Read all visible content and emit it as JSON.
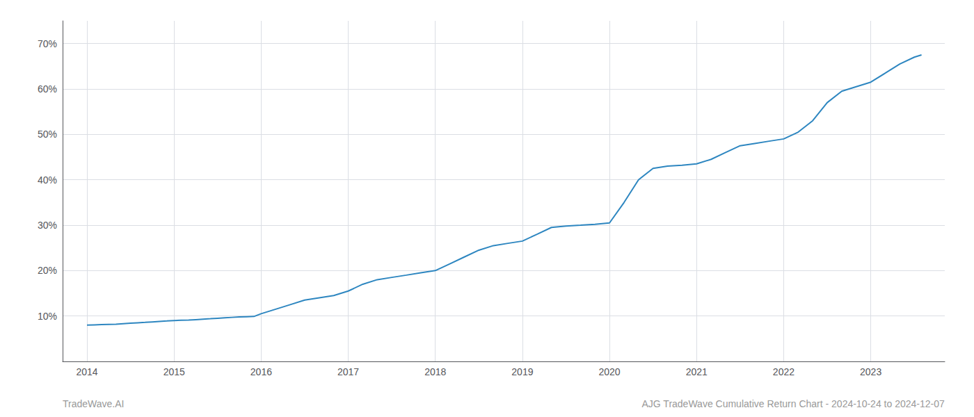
{
  "chart_data": {
    "type": "line",
    "x": [
      2014.0,
      2014.083,
      2014.167,
      2014.25,
      2014.333,
      2014.417,
      2014.5,
      2014.583,
      2014.667,
      2014.75,
      2014.833,
      2014.917,
      2015.0,
      2015.083,
      2015.167,
      2015.25,
      2015.333,
      2015.417,
      2015.5,
      2015.583,
      2015.667,
      2015.75,
      2015.833,
      2015.917,
      2016.0,
      2016.167,
      2016.333,
      2016.5,
      2016.667,
      2016.833,
      2017.0,
      2017.167,
      2017.333,
      2017.5,
      2017.667,
      2017.833,
      2018.0,
      2018.167,
      2018.333,
      2018.5,
      2018.667,
      2018.833,
      2019.0,
      2019.167,
      2019.333,
      2019.5,
      2019.667,
      2019.833,
      2020.0,
      2020.167,
      2020.333,
      2020.5,
      2020.667,
      2020.833,
      2021.0,
      2021.167,
      2021.333,
      2021.5,
      2021.667,
      2021.833,
      2022.0,
      2022.167,
      2022.333,
      2022.5,
      2022.667,
      2022.833,
      2023.0,
      2023.167,
      2023.333,
      2023.5,
      2023.583
    ],
    "values": [
      8.0,
      8.05,
      8.1,
      8.15,
      8.2,
      8.3,
      8.4,
      8.5,
      8.6,
      8.7,
      8.8,
      8.9,
      9.0,
      9.05,
      9.1,
      9.2,
      9.3,
      9.4,
      9.5,
      9.6,
      9.7,
      9.8,
      9.85,
      9.9,
      10.5,
      11.5,
      12.5,
      13.5,
      14.0,
      14.5,
      15.5,
      17.0,
      18.0,
      18.5,
      19.0,
      19.5,
      20.0,
      21.5,
      23.0,
      24.5,
      25.5,
      26.0,
      26.5,
      28.0,
      29.5,
      29.8,
      30.0,
      30.2,
      30.5,
      35.0,
      40.0,
      42.5,
      43.0,
      43.2,
      43.5,
      44.5,
      46.0,
      47.5,
      48.0,
      48.5,
      49.0,
      50.5,
      53.0,
      57.0,
      59.5,
      60.5,
      61.5,
      63.5,
      65.5,
      67.0,
      67.5
    ],
    "color": "#2d86c0",
    "xlim": [
      2013.72,
      2023.85
    ],
    "xticks": [
      2014,
      2015,
      2016,
      2017,
      2018,
      2019,
      2020,
      2021,
      2022,
      2023
    ],
    "ylim": [
      0,
      75
    ],
    "yticks": [
      {
        "value": 10,
        "label": "10%"
      },
      {
        "value": 20,
        "label": "20%"
      },
      {
        "value": 30,
        "label": "30%"
      },
      {
        "value": 40,
        "label": "40%"
      },
      {
        "value": 50,
        "label": "50%"
      },
      {
        "value": 60,
        "label": "60%"
      },
      {
        "value": 70,
        "label": "70%"
      }
    ],
    "grid": true,
    "annotations": [
      "TradeWave.AI",
      "AJG TradeWave Cumulative Return Chart - 2024-10-24 to 2024-12-07"
    ]
  }
}
